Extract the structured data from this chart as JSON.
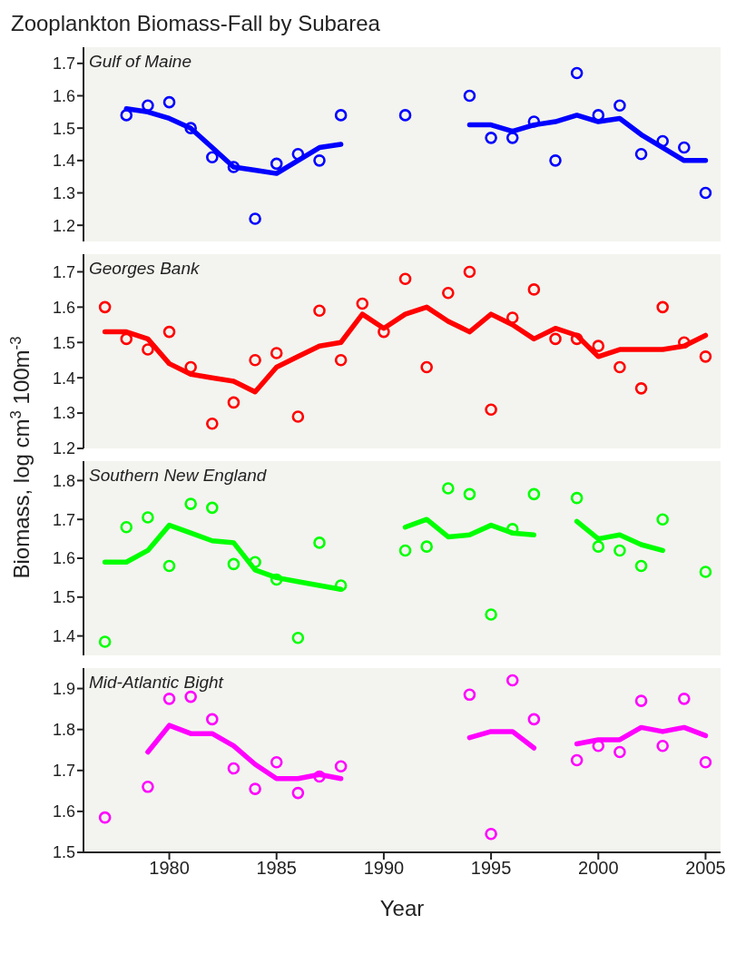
{
  "chart_data": [
    {
      "type": "scatter",
      "title": "Zooplankton Biomass-Fall by Subarea",
      "subtitle": "Gulf of Maine",
      "ylabel": "Biomass, log cm$^{3}$ 100m$^{-3}$",
      "xlim": [
        1976,
        2005.7
      ],
      "xticks": [
        1980,
        1985,
        1990,
        1995,
        2000,
        2005
      ],
      "ylim": [
        1.15,
        1.75
      ],
      "yticks": [
        1.2,
        1.3,
        1.4,
        1.5,
        1.6,
        1.7
      ],
      "tick_labels": "y",
      "grid": false,
      "legend": false,
      "series": [
        {
          "marker": "circle",
          "color": "#0000ff",
          "x": [
            1978,
            1979,
            1980,
            1981,
            1982,
            1983,
            1984,
            1985,
            1986,
            1987,
            1988,
            1991,
            1994,
            1995,
            1996,
            1997,
            1998,
            1999,
            2000,
            2001,
            2002,
            2003,
            2004,
            2005
          ],
          "values": [
            1.54,
            1.57,
            1.58,
            1.5,
            1.41,
            1.38,
            1.22,
            1.39,
            1.42,
            1.4,
            1.54,
            1.54,
            1.6,
            1.47,
            1.47,
            1.52,
            1.4,
            1.67,
            1.54,
            1.57,
            1.42,
            1.46,
            1.44,
            1.3
          ]
        },
        {
          "type": "line",
          "line_style": "solid",
          "color": "#0000ff",
          "x": [
            1978,
            1979,
            1980,
            1981,
            1982,
            1983,
            1984,
            1985,
            1986,
            1987,
            1988,
            1990,
            1994,
            1995,
            1996,
            1997,
            1998,
            1999,
            2000,
            2001,
            2002,
            2003,
            2004,
            2005
          ],
          "values": [
            1.56,
            1.55,
            1.53,
            1.5,
            1.44,
            1.38,
            1.37,
            1.36,
            1.4,
            1.44,
            1.45,
            null,
            1.51,
            1.51,
            1.49,
            1.51,
            1.52,
            1.54,
            1.52,
            1.53,
            1.48,
            1.44,
            1.4,
            1.4
          ]
        }
      ]
    },
    {
      "type": "scatter",
      "subtitle": "Georges Bank",
      "xlim": [
        1976,
        2005.7
      ],
      "xticks": [
        1980,
        1985,
        1990,
        1995,
        2000,
        2005
      ],
      "ylim": [
        1.2,
        1.75
      ],
      "yticks": [
        1.2,
        1.3,
        1.4,
        1.5,
        1.6,
        1.7
      ],
      "tick_labels": "y",
      "grid": false,
      "legend": false,
      "series": [
        {
          "marker": "circle",
          "color": "#ff0000",
          "x": [
            1977,
            1978,
            1979,
            1980,
            1981,
            1982,
            1983,
            1984,
            1985,
            1986,
            1987,
            1988,
            1989,
            1990,
            1991,
            1992,
            1993,
            1994,
            1995,
            1996,
            1997,
            1998,
            1999,
            2000,
            2001,
            2002,
            2003,
            2004,
            2005
          ],
          "values": [
            1.6,
            1.51,
            1.48,
            1.53,
            1.43,
            1.27,
            1.33,
            1.45,
            1.47,
            1.29,
            1.59,
            1.45,
            1.61,
            1.53,
            1.68,
            1.43,
            1.64,
            1.7,
            1.31,
            1.57,
            1.65,
            1.51,
            1.51,
            1.49,
            1.43,
            1.37,
            1.6,
            1.5,
            1.46
          ]
        },
        {
          "type": "line",
          "line_style": "solid",
          "color": "#ff0000",
          "x": [
            1977,
            1978,
            1979,
            1980,
            1981,
            1982,
            1983,
            1984,
            1985,
            1986,
            1987,
            1988,
            1989,
            1990,
            1991,
            1992,
            1993,
            1994,
            1995,
            1996,
            1997,
            1998,
            1999,
            2000,
            2001,
            2002,
            2003,
            2004,
            2005
          ],
          "values": [
            1.53,
            1.53,
            1.51,
            1.44,
            1.41,
            1.4,
            1.39,
            1.36,
            1.43,
            1.46,
            1.49,
            1.5,
            1.58,
            1.54,
            1.58,
            1.6,
            1.56,
            1.53,
            1.58,
            1.55,
            1.51,
            1.54,
            1.52,
            1.46,
            1.48,
            1.48,
            1.48,
            1.49,
            1.52
          ]
        }
      ]
    },
    {
      "type": "scatter",
      "subtitle": "Southern New England",
      "xlim": [
        1976,
        2005.7
      ],
      "xticks": [
        1980,
        1985,
        1990,
        1995,
        2000,
        2005
      ],
      "ylim": [
        1.35,
        1.85
      ],
      "yticks": [
        1.4,
        1.5,
        1.6,
        1.7,
        1.8
      ],
      "tick_labels": "y",
      "grid": false,
      "legend": false,
      "series": [
        {
          "marker": "circle",
          "color": "#00ff00",
          "x": [
            1977,
            1978,
            1979,
            1980,
            1981,
            1982,
            1983,
            1984,
            1985,
            1986,
            1987,
            1988,
            1991,
            1992,
            1993,
            1994,
            1995,
            1996,
            1997,
            1999,
            2000,
            2001,
            2002,
            2003,
            2005
          ],
          "values": [
            1.385,
            1.68,
            1.705,
            1.58,
            1.74,
            1.73,
            1.585,
            1.59,
            1.545,
            1.395,
            1.64,
            1.53,
            1.62,
            1.63,
            1.78,
            1.765,
            1.455,
            1.675,
            1.765,
            1.755,
            1.63,
            1.62,
            1.58,
            1.7,
            1.565
          ]
        },
        {
          "type": "line",
          "line_style": "solid",
          "color": "#00ff00",
          "x": [
            1977,
            1978,
            1979,
            1980,
            1981,
            1982,
            1983,
            1984,
            1985,
            1986,
            1987,
            1988,
            1990,
            1991,
            1992,
            1993,
            1994,
            1995,
            1996,
            1997,
            1998,
            1999,
            2000,
            2001,
            2002,
            2003
          ],
          "values": [
            1.59,
            1.59,
            1.62,
            1.685,
            1.665,
            1.645,
            1.64,
            1.57,
            1.55,
            1.54,
            1.53,
            1.52,
            null,
            1.68,
            1.7,
            1.655,
            1.66,
            1.685,
            1.665,
            1.66,
            null,
            1.695,
            1.65,
            1.66,
            1.635,
            1.62
          ]
        }
      ]
    },
    {
      "type": "scatter",
      "subtitle": "Mid-Atlantic Bight",
      "xlabel": "Year",
      "xlim": [
        1976,
        2005.7
      ],
      "xticks": [
        1980,
        1985,
        1990,
        1995,
        2000,
        2005
      ],
      "ylim": [
        1.5,
        1.95
      ],
      "yticks": [
        1.5,
        1.6,
        1.7,
        1.8,
        1.9
      ],
      "grid": false,
      "legend": false,
      "series": [
        {
          "marker": "circle",
          "color": "#ff00ff",
          "x": [
            1977,
            1979,
            1980,
            1981,
            1982,
            1983,
            1984,
            1985,
            1986,
            1987,
            1988,
            1994,
            1995,
            1996,
            1997,
            1999,
            2000,
            2001,
            2002,
            2003,
            2004,
            2005
          ],
          "values": [
            1.585,
            1.66,
            1.875,
            1.88,
            1.825,
            1.705,
            1.655,
            1.72,
            1.645,
            1.685,
            1.71,
            1.885,
            1.545,
            1.92,
            1.825,
            1.725,
            1.76,
            1.745,
            1.87,
            1.76,
            1.875,
            1.72
          ]
        },
        {
          "type": "line",
          "line_style": "solid",
          "color": "#ff00ff",
          "x": [
            1979,
            1980,
            1981,
            1982,
            1983,
            1984,
            1985,
            1986,
            1987,
            1988,
            1990,
            1994,
            1995,
            1996,
            1997,
            1998,
            1999,
            2000,
            2001,
            2002,
            2003,
            2004,
            2005
          ],
          "values": [
            1.745,
            1.81,
            1.79,
            1.79,
            1.76,
            1.715,
            1.68,
            1.68,
            1.69,
            1.68,
            null,
            1.78,
            1.795,
            1.795,
            1.755,
            null,
            1.765,
            1.775,
            1.775,
            1.805,
            1.795,
            1.805,
            1.785
          ]
        }
      ]
    }
  ]
}
